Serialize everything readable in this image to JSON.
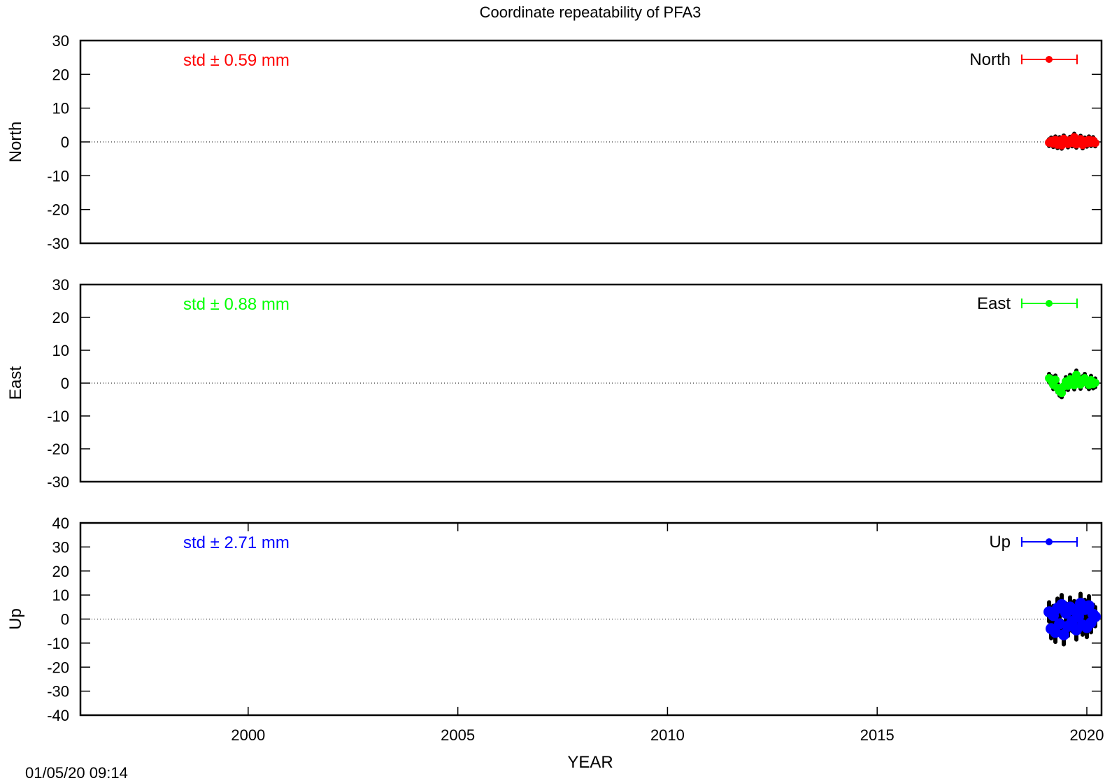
{
  "title": "Coordinate repeatability of PFA3",
  "timestamp": "01/05/20 09:14",
  "colors": {
    "north": "#ff0000",
    "east": "#00ff00",
    "up": "#0000ff",
    "errorbar": "#000000",
    "frame": "#000000"
  },
  "chart_data": [
    {
      "type": "scatter",
      "ylabel": "North",
      "legend": "North",
      "legend_position": "top-right",
      "std_text": "std ± 0.59 mm",
      "color": "#ff0000",
      "xlim": [
        1996.0,
        2020.35
      ],
      "ylim": [
        -30,
        30
      ],
      "yticks": [
        -30,
        -20,
        -10,
        0,
        10,
        20,
        30
      ],
      "xticks_shown": false,
      "zero_line": true,
      "series": [
        {
          "x": [
            2019.1,
            2019.15,
            2019.2,
            2019.25,
            2019.3,
            2019.35,
            2019.4,
            2019.45,
            2019.5,
            2019.55,
            2019.6,
            2019.65,
            2019.7,
            2019.75,
            2019.8,
            2019.85,
            2019.9,
            2019.95,
            2020.0,
            2020.05,
            2020.1,
            2020.15,
            2020.2
          ],
          "y": [
            -0.2,
            0.3,
            -0.5,
            0.6,
            -0.8,
            0.4,
            -1.0,
            0.9,
            0.2,
            -0.6,
            0.5,
            -0.3,
            1.4,
            -0.7,
            0.1,
            0.8,
            -0.9,
            0.3,
            -0.4,
            0.6,
            -0.2,
            0.4,
            -0.3
          ],
          "err": [
            1.0,
            1.0,
            1.0,
            1.0,
            1.0,
            1.0,
            1.0,
            1.0,
            1.0,
            1.0,
            1.0,
            1.0,
            1.0,
            1.0,
            1.0,
            1.0,
            1.0,
            1.0,
            1.0,
            1.0,
            1.0,
            1.0,
            1.0
          ]
        }
      ]
    },
    {
      "type": "scatter",
      "ylabel": "East",
      "legend": "East",
      "legend_position": "top-right",
      "std_text": "std ± 0.88 mm",
      "color": "#00ff00",
      "xlim": [
        1996.0,
        2020.35
      ],
      "ylim": [
        -30,
        30
      ],
      "yticks": [
        -30,
        -20,
        -10,
        0,
        10,
        20,
        30
      ],
      "xticks_shown": false,
      "zero_line": true,
      "series": [
        {
          "x": [
            2019.1,
            2019.15,
            2019.2,
            2019.25,
            2019.3,
            2019.35,
            2019.4,
            2019.45,
            2019.5,
            2019.55,
            2019.6,
            2019.65,
            2019.7,
            2019.75,
            2019.8,
            2019.85,
            2019.9,
            2019.95,
            2020.0,
            2020.05,
            2020.1,
            2020.15,
            2020.2
          ],
          "y": [
            1.5,
            0.8,
            -0.5,
            1.0,
            -1.5,
            -2.5,
            -3.0,
            -1.0,
            0.5,
            -0.8,
            1.2,
            0.3,
            -0.6,
            2.5,
            1.0,
            -0.4,
            0.8,
            1.5,
            0.2,
            -0.5,
            0.9,
            -0.3,
            0.1
          ],
          "err": [
            1.3,
            1.3,
            1.3,
            1.3,
            1.3,
            1.3,
            1.3,
            1.3,
            1.3,
            1.3,
            1.3,
            1.3,
            1.3,
            1.3,
            1.3,
            1.3,
            1.3,
            1.3,
            1.3,
            1.3,
            1.3,
            1.3,
            1.3
          ]
        }
      ]
    },
    {
      "type": "scatter",
      "ylabel": "Up",
      "legend": "Up",
      "legend_position": "top-right",
      "std_text": "std ± 2.71 mm",
      "color": "#0000ff",
      "xlim": [
        1996.0,
        2020.35
      ],
      "ylim": [
        -40,
        40
      ],
      "yticks": [
        -40,
        -30,
        -20,
        -10,
        0,
        10,
        20,
        30,
        40
      ],
      "xticks": [
        2000,
        2005,
        2010,
        2015,
        2020
      ],
      "xticks_shown": true,
      "xlabel": "YEAR",
      "zero_line": true,
      "series": [
        {
          "x": [
            2019.1,
            2019.15,
            2019.2,
            2019.25,
            2019.3,
            2019.35,
            2019.4,
            2019.45,
            2019.5,
            2019.55,
            2019.6,
            2019.65,
            2019.7,
            2019.75,
            2019.8,
            2019.85,
            2019.9,
            2019.95,
            2020.0,
            2020.05,
            2020.1,
            2020.15,
            2020.2
          ],
          "y": [
            3.0,
            -4.0,
            1.5,
            -5.5,
            4.5,
            -2.0,
            6.0,
            -6.5,
            2.5,
            -3.0,
            5.0,
            -1.0,
            3.5,
            -4.5,
            1.0,
            6.5,
            -2.5,
            4.0,
            -3.5,
            5.5,
            -1.5,
            2.0,
            1.0
          ],
          "err": [
            4.0,
            4.0,
            4.0,
            4.0,
            4.0,
            4.0,
            4.0,
            4.0,
            4.0,
            4.0,
            4.0,
            4.0,
            4.0,
            4.0,
            4.0,
            4.0,
            4.0,
            4.0,
            4.0,
            4.0,
            4.0,
            4.0,
            4.0
          ]
        }
      ]
    }
  ]
}
